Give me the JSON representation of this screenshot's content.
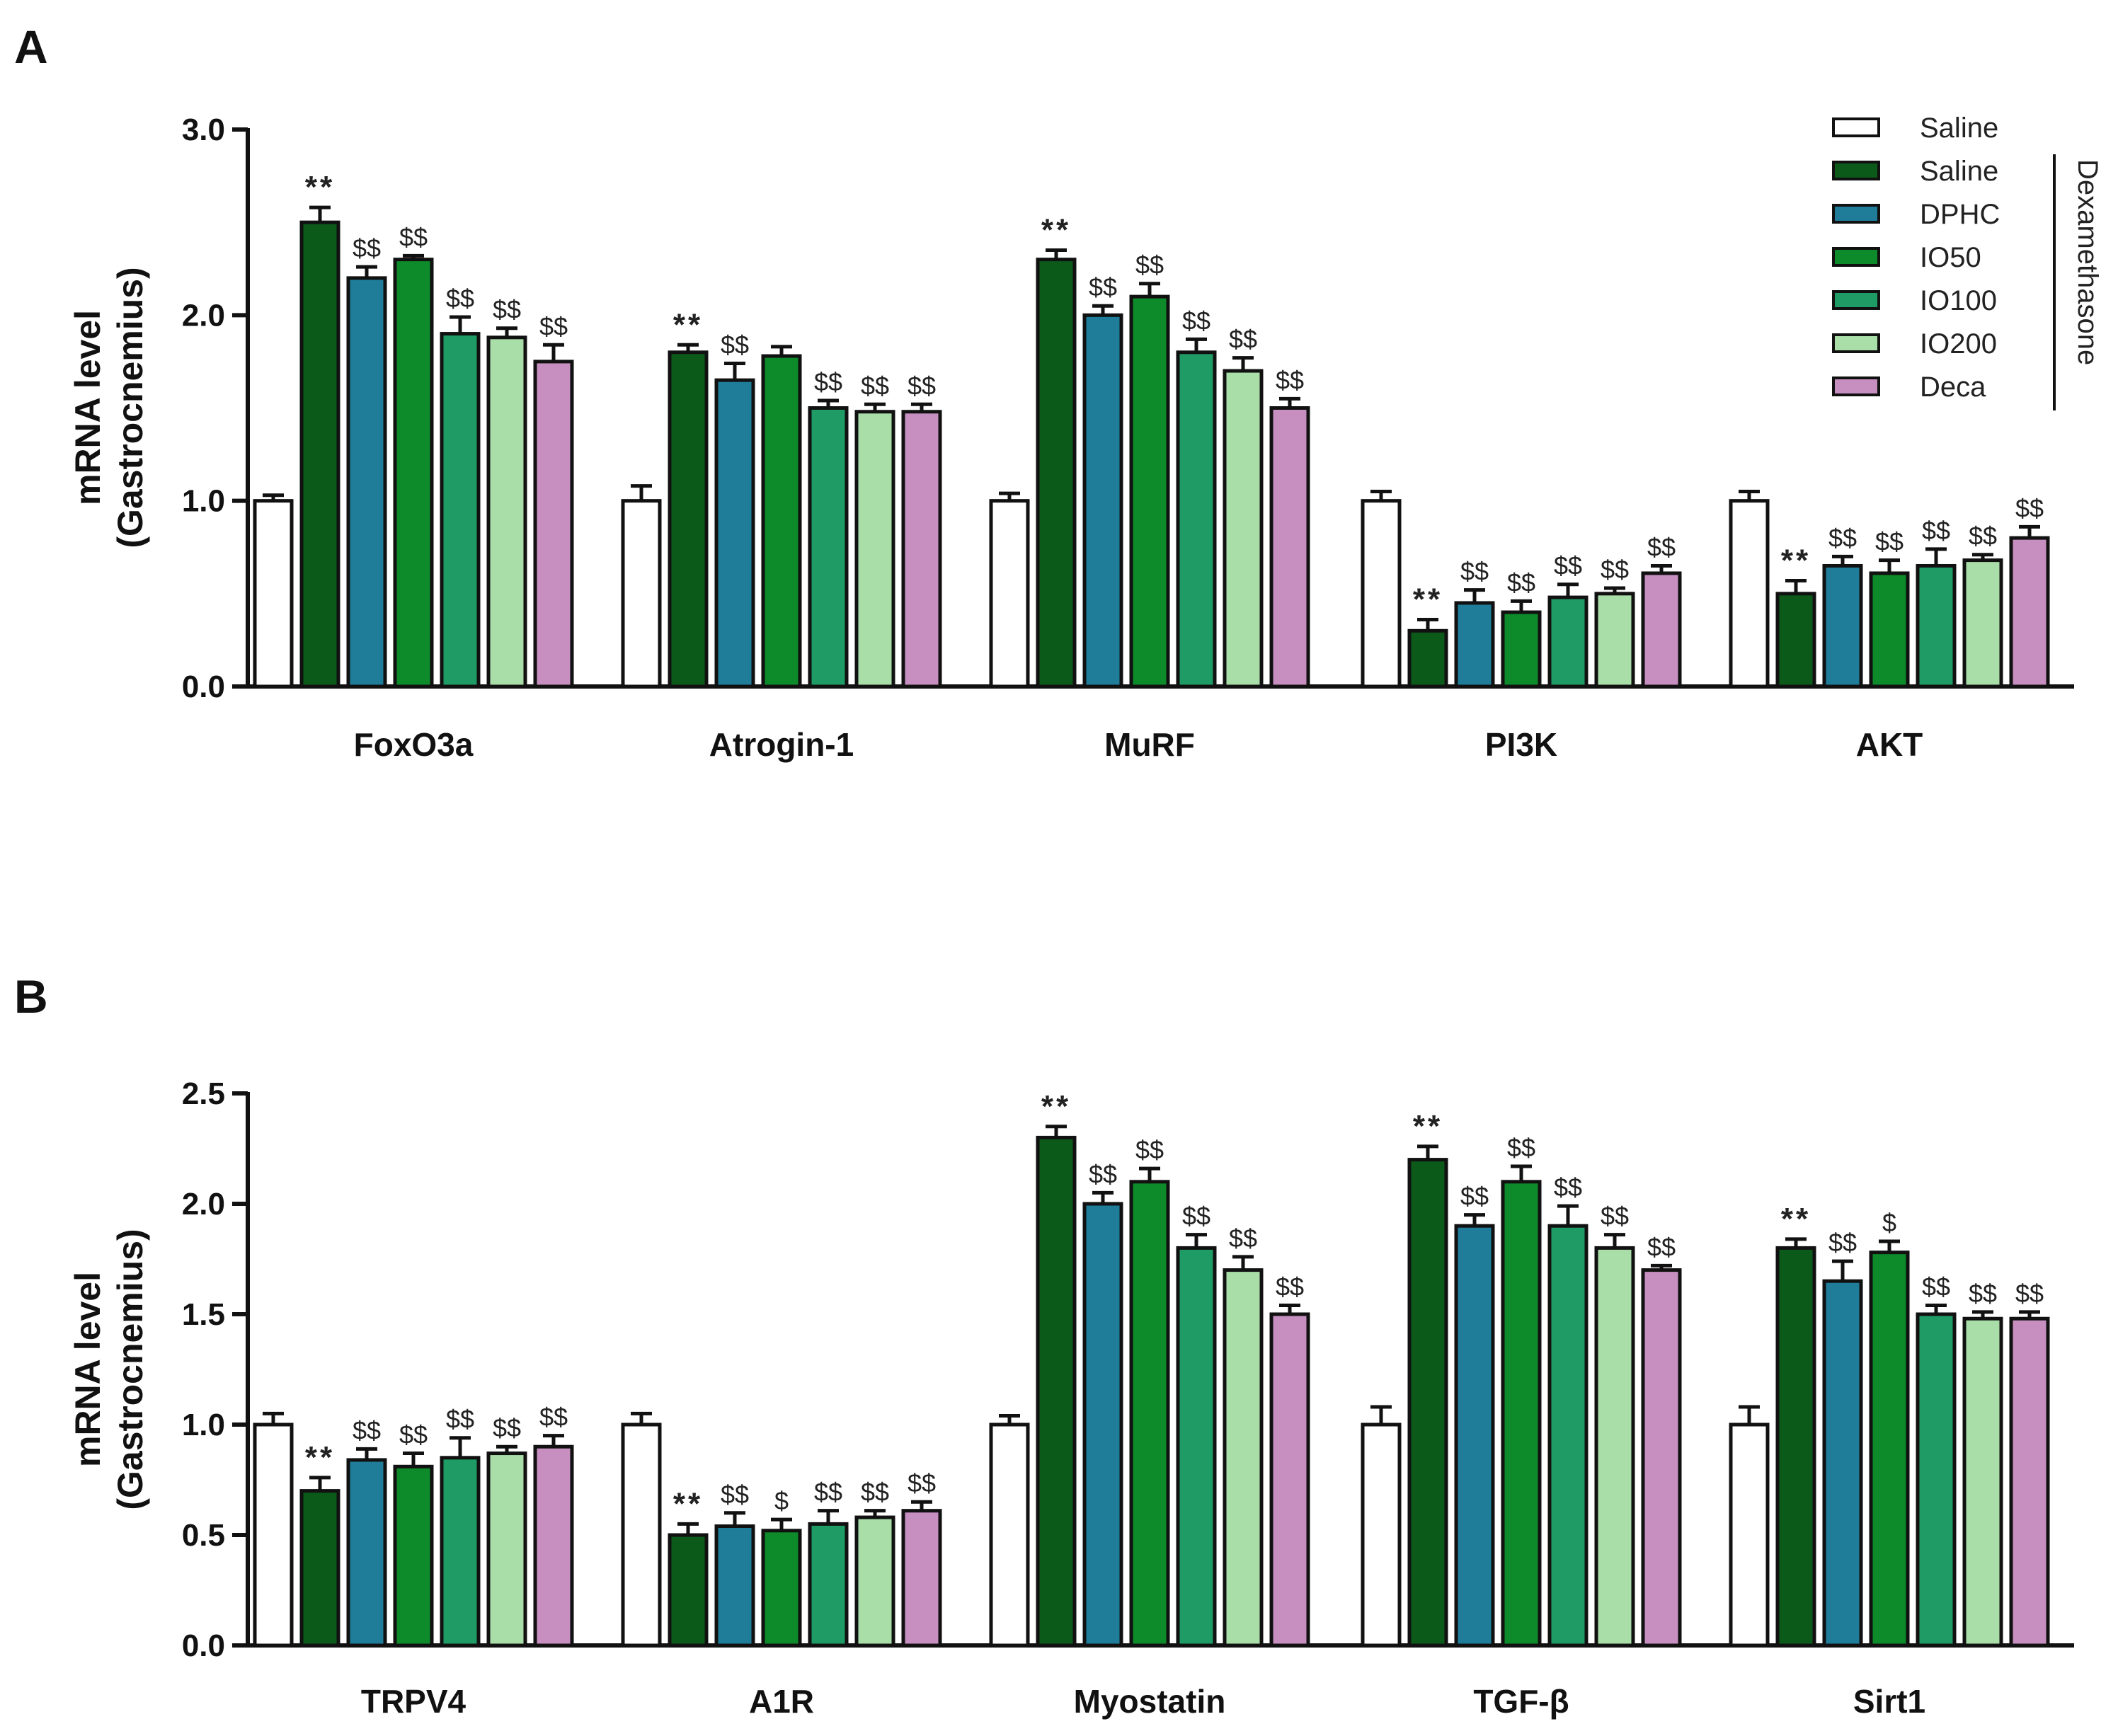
{
  "panel_labels": [
    "A",
    "B"
  ],
  "legend": {
    "entries": [
      {
        "label": "Saline",
        "color": "#ffffff"
      },
      {
        "label": "Saline",
        "color": "#0b5a1a"
      },
      {
        "label": "DPHC",
        "color": "#1f7d9a"
      },
      {
        "label": "IO50",
        "color": "#0d8a2a"
      },
      {
        "label": "IO100",
        "color": "#1f9c66"
      },
      {
        "label": "IO200",
        "color": "#a9dea9"
      },
      {
        "label": "Deca",
        "color": "#c78fc0"
      }
    ],
    "bracket_label": "Dexamethasone"
  },
  "chart_data": [
    {
      "type": "bar",
      "panel": "A",
      "ylabel_line1": "mRNA level",
      "ylabel_line2": "(Gastrocnemius)",
      "ylim": [
        0,
        3.0
      ],
      "yticks": [
        "0.0",
        "1.0",
        "2.0",
        "3.0"
      ],
      "categories": [
        "FoxO3a",
        "Atrogin-1",
        "MuRF",
        "PI3K",
        "AKT"
      ],
      "series": [
        {
          "name": "Saline",
          "values": [
            1.0,
            1.0,
            1.0,
            1.0,
            1.0
          ],
          "errors": [
            0.03,
            0.08,
            0.04,
            0.05,
            0.05
          ],
          "sig": [
            "",
            "",
            "",
            "",
            ""
          ]
        },
        {
          "name": "Saline",
          "values": [
            2.5,
            1.8,
            2.3,
            0.3,
            0.5
          ],
          "errors": [
            0.08,
            0.04,
            0.05,
            0.06,
            0.07
          ],
          "sig": [
            "**",
            "**",
            "**",
            "**",
            "**"
          ]
        },
        {
          "name": "DPHC",
          "values": [
            2.2,
            1.65,
            2.0,
            0.45,
            0.65
          ],
          "errors": [
            0.06,
            0.09,
            0.05,
            0.07,
            0.05
          ],
          "sig": [
            "$$",
            "$$",
            "$$",
            "$$",
            "$$"
          ]
        },
        {
          "name": "IO50",
          "values": [
            2.3,
            1.78,
            2.1,
            0.4,
            0.61
          ],
          "errors": [
            0.02,
            0.05,
            0.07,
            0.06,
            0.07
          ],
          "sig": [
            "$$",
            "",
            "$$",
            "$$",
            "$$"
          ]
        },
        {
          "name": "IO100",
          "values": [
            1.9,
            1.5,
            1.8,
            0.48,
            0.65
          ],
          "errors": [
            0.09,
            0.04,
            0.07,
            0.07,
            0.09
          ],
          "sig": [
            "$$",
            "$$",
            "$$",
            "$$",
            "$$"
          ]
        },
        {
          "name": "IO200",
          "values": [
            1.88,
            1.48,
            1.7,
            0.5,
            0.68
          ],
          "errors": [
            0.05,
            0.04,
            0.07,
            0.03,
            0.03
          ],
          "sig": [
            "$$",
            "$$",
            "$$",
            "$$",
            "$$"
          ]
        },
        {
          "name": "Deca",
          "values": [
            1.75,
            1.48,
            1.5,
            0.61,
            0.8
          ],
          "errors": [
            0.09,
            0.04,
            0.05,
            0.04,
            0.06
          ],
          "sig": [
            "$$",
            "$$",
            "$$",
            "$$",
            "$$"
          ]
        }
      ]
    },
    {
      "type": "bar",
      "panel": "B",
      "ylabel_line1": "mRNA level",
      "ylabel_line2": "(Gastrocnemius)",
      "ylim": [
        0,
        2.5
      ],
      "yticks": [
        "0.0",
        "0.5",
        "1.0",
        "1.5",
        "2.0",
        "2.5"
      ],
      "categories": [
        "TRPV4",
        "A1R",
        "Myostatin",
        "TGF-β",
        "Sirt1"
      ],
      "series": [
        {
          "name": "Saline",
          "values": [
            1.0,
            1.0,
            1.0,
            1.0,
            1.0
          ],
          "errors": [
            0.05,
            0.05,
            0.04,
            0.08,
            0.08
          ],
          "sig": [
            "",
            "",
            "",
            "",
            ""
          ]
        },
        {
          "name": "Saline",
          "values": [
            0.7,
            0.5,
            2.3,
            2.2,
            1.8
          ],
          "errors": [
            0.06,
            0.05,
            0.05,
            0.06,
            0.04
          ],
          "sig": [
            "**",
            "**",
            "**",
            "**",
            "**"
          ]
        },
        {
          "name": "DPHC",
          "values": [
            0.84,
            0.54,
            2.0,
            1.9,
            1.65
          ],
          "errors": [
            0.05,
            0.06,
            0.05,
            0.05,
            0.09
          ],
          "sig": [
            "$$",
            "$$",
            "$$",
            "$$",
            "$$"
          ]
        },
        {
          "name": "IO50",
          "values": [
            0.81,
            0.52,
            2.1,
            2.1,
            1.78
          ],
          "errors": [
            0.06,
            0.05,
            0.06,
            0.07,
            0.05
          ],
          "sig": [
            "$$",
            "$",
            "$$",
            "$$",
            "$"
          ]
        },
        {
          "name": "IO100",
          "values": [
            0.85,
            0.55,
            1.8,
            1.9,
            1.5
          ],
          "errors": [
            0.09,
            0.06,
            0.06,
            0.09,
            0.04
          ],
          "sig": [
            "$$",
            "$$",
            "$$",
            "$$",
            "$$"
          ]
        },
        {
          "name": "IO200",
          "values": [
            0.87,
            0.58,
            1.7,
            1.8,
            1.48
          ],
          "errors": [
            0.03,
            0.03,
            0.06,
            0.06,
            0.03
          ],
          "sig": [
            "$$",
            "$$",
            "$$",
            "$$",
            "$$"
          ]
        },
        {
          "name": "Deca",
          "values": [
            0.9,
            0.61,
            1.5,
            1.7,
            1.48
          ],
          "errors": [
            0.05,
            0.04,
            0.04,
            0.02,
            0.03
          ],
          "sig": [
            "$$",
            "$$",
            "$$",
            "$$",
            "$$"
          ]
        }
      ]
    }
  ]
}
